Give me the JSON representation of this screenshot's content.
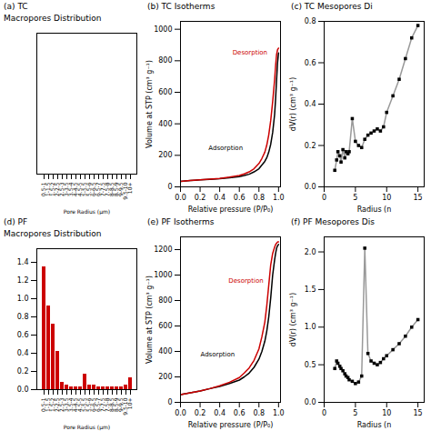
{
  "chart_data": [
    {
      "type": "bar",
      "title": "(a) TC",
      "subtitle": "Macropores Distribution",
      "xlabel": "Pore Radius (μm)",
      "categories": [
        "0.5-1",
        "1-1.5",
        "1.5-2",
        "2-2.5",
        "2.5-3",
        "3-3.5",
        "3.5-4",
        "4-4.5",
        "4.5-5",
        "5-5.5",
        "5.5-6",
        "6-6.5",
        "6.5-7",
        "7-7.5",
        "7.5-8",
        "8-8.5",
        "8.5-9",
        "9-9.5",
        "9.5-10",
        "10+"
      ],
      "values": [
        0,
        0,
        0,
        0,
        0,
        0,
        0,
        0,
        0,
        0,
        0,
        0,
        0,
        0,
        0,
        0,
        0,
        0,
        0,
        0
      ],
      "color": "#cc0000",
      "ylim": [
        0,
        1.6
      ],
      "yticks": [],
      "tick_labels": "x"
    },
    {
      "type": "line",
      "title": "(b) TC Isotherms",
      "xlabel": "Relative pressure (P/P₀)",
      "ylabel": "Volume at STP (cm³ g⁻¹)",
      "xlim": [
        0,
        1.02
      ],
      "xticks": [
        {
          "value": 0,
          "label": "0.0"
        },
        0.2,
        0.4,
        0.6,
        0.8,
        {
          "value": 1,
          "label": "1.0"
        }
      ],
      "ylim": [
        0,
        1050
      ],
      "yticks": [
        0,
        200,
        400,
        600,
        800,
        1000
      ],
      "series": [
        {
          "name": "Adsorption",
          "color": "#000000",
          "x": [
            0.0,
            0.05,
            0.1,
            0.15,
            0.2,
            0.3,
            0.4,
            0.5,
            0.6,
            0.65,
            0.7,
            0.75,
            0.8,
            0.83,
            0.86,
            0.88,
            0.9,
            0.92,
            0.94,
            0.96,
            0.97,
            0.98,
            0.99,
            1.0
          ],
          "values": [
            35,
            38,
            40,
            42,
            44,
            48,
            52,
            58,
            65,
            72,
            80,
            95,
            115,
            138,
            162,
            185,
            220,
            270,
            345,
            460,
            560,
            680,
            790,
            850
          ]
        },
        {
          "name": "Desorption",
          "color": "#cc0000",
          "x": [
            0.0,
            0.05,
            0.1,
            0.2,
            0.3,
            0.4,
            0.5,
            0.6,
            0.65,
            0.7,
            0.75,
            0.8,
            0.83,
            0.86,
            0.88,
            0.9,
            0.92,
            0.94,
            0.96,
            0.97,
            0.98,
            0.99,
            1.0
          ],
          "values": [
            35,
            38,
            40,
            44,
            49,
            54,
            62,
            72,
            82,
            95,
            115,
            148,
            180,
            220,
            265,
            330,
            420,
            540,
            680,
            770,
            840,
            870,
            880
          ]
        }
      ]
    },
    {
      "type": "line",
      "title": "(c) TC Mesopores Di",
      "xlabel": "Radius (n",
      "ylabel": "dV(r) (cm³ g⁻¹)",
      "xlim": [
        0,
        16
      ],
      "xticks": [
        0,
        5,
        10,
        15
      ],
      "ylim": [
        0,
        0.8
      ],
      "yticks": [
        {
          "value": 0,
          "label": "0.0"
        },
        0.2,
        0.4,
        0.6,
        0.8
      ],
      "x": [
        1.7,
        2.0,
        2.2,
        2.5,
        2.7,
        3.0,
        3.3,
        3.5,
        3.8,
        4.0,
        4.5,
        5.0,
        5.5,
        6.0,
        6.5,
        7.0,
        7.5,
        8.0,
        8.5,
        9.0,
        9.5,
        10.0,
        11.0,
        12.0,
        13.0,
        14.0,
        15.0
      ],
      "series": [
        {
          "type": "line",
          "color": "#999999",
          "values": [
            0.08,
            0.13,
            0.17,
            0.15,
            0.12,
            0.18,
            0.14,
            0.17,
            0.16,
            0.17,
            0.33,
            0.22,
            0.2,
            0.19,
            0.23,
            0.25,
            0.26,
            0.27,
            0.28,
            0.27,
            0.29,
            0.36,
            0.44,
            0.52,
            0.62,
            0.72,
            0.78
          ]
        },
        {
          "type": "scatter",
          "color": "#000000",
          "marker": "square",
          "values": [
            0.08,
            0.13,
            0.17,
            0.15,
            0.12,
            0.18,
            0.14,
            0.17,
            0.16,
            0.17,
            0.33,
            0.22,
            0.2,
            0.19,
            0.23,
            0.25,
            0.26,
            0.27,
            0.28,
            0.27,
            0.29,
            0.36,
            0.44,
            0.52,
            0.62,
            0.72,
            0.78
          ]
        }
      ]
    },
    {
      "type": "bar",
      "title": "(d) PF",
      "subtitle": "Macropores Distribution",
      "xlabel": "Pore Radius (μm)",
      "categories": [
        "0.5-1",
        "1-1.5",
        "1.5-2",
        "2-2.5",
        "2.5-3",
        "3-3.5",
        "3.5-4",
        "4-4.5",
        "4.5-5",
        "5-5.5",
        "5.5-6",
        "6-6.5",
        "6.5-7",
        "7-7.5",
        "7.5-8",
        "8-8.5",
        "8.5-9",
        "9-9.5",
        "9.5-10",
        "10+"
      ],
      "values": [
        1.35,
        0.92,
        0.72,
        0.42,
        0.08,
        0.05,
        0.03,
        0.03,
        0.03,
        0.17,
        0.05,
        0.05,
        0.03,
        0.03,
        0.03,
        0.03,
        0.03,
        0.03,
        0.05,
        0.13
      ],
      "color": "#cc0000",
      "ylim": [
        0,
        1.55
      ],
      "yticks": [
        {
          "value": 0,
          "label": "0.0"
        },
        0.2,
        0.4,
        0.6,
        0.8,
        {
          "value": 1,
          "label": "1.0"
        },
        1.2,
        1.4
      ]
    },
    {
      "type": "line",
      "title": "(e) PF Isotherms",
      "xlabel": "Relative pressure (P/P₀)",
      "ylabel": "Volume at STP (cm³ g⁻¹)",
      "xlim": [
        0,
        1.02
      ],
      "xticks": [
        {
          "value": 0,
          "label": "0.0"
        },
        0.2,
        0.4,
        0.6,
        0.8,
        {
          "value": 1,
          "label": "1.0"
        }
      ],
      "ylim": [
        0,
        1300
      ],
      "yticks": [
        0,
        200,
        400,
        600,
        800,
        1000,
        1200
      ],
      "series": [
        {
          "name": "Adsorption",
          "color": "#000000",
          "x": [
            0.0,
            0.05,
            0.1,
            0.15,
            0.2,
            0.3,
            0.4,
            0.5,
            0.6,
            0.65,
            0.7,
            0.75,
            0.8,
            0.83,
            0.86,
            0.88,
            0.9,
            0.92,
            0.94,
            0.96,
            0.97,
            0.98,
            0.99,
            1.0
          ],
          "values": [
            60,
            68,
            75,
            82,
            90,
            108,
            125,
            148,
            175,
            200,
            230,
            275,
            340,
            400,
            480,
            560,
            670,
            820,
            1000,
            1120,
            1170,
            1210,
            1230,
            1240
          ]
        },
        {
          "name": "Desorption",
          "color": "#cc0000",
          "x": [
            0.0,
            0.05,
            0.1,
            0.2,
            0.3,
            0.4,
            0.5,
            0.6,
            0.65,
            0.7,
            0.75,
            0.8,
            0.83,
            0.86,
            0.88,
            0.9,
            0.92,
            0.94,
            0.96,
            0.97,
            0.98,
            0.99,
            1.0
          ],
          "values": [
            60,
            68,
            75,
            90,
            108,
            130,
            158,
            195,
            230,
            270,
            330,
            420,
            515,
            630,
            760,
            920,
            1080,
            1170,
            1220,
            1240,
            1250,
            1260,
            1260
          ]
        }
      ]
    },
    {
      "type": "line",
      "title": "(f) PF Mesopores Dis",
      "xlabel": "Radius (n",
      "ylabel": "dV(r) (cm³ g⁻¹)",
      "xlim": [
        0,
        16
      ],
      "xticks": [
        0,
        5,
        10,
        15
      ],
      "ylim": [
        0,
        2.2
      ],
      "yticks": [
        {
          "value": 0,
          "label": "0.0"
        },
        0.5,
        {
          "value": 1,
          "label": "1.0"
        },
        1.5,
        {
          "value": 2,
          "label": "2.0"
        }
      ],
      "x": [
        1.7,
        2.0,
        2.2,
        2.5,
        2.7,
        3.0,
        3.3,
        3.5,
        3.8,
        4.0,
        4.5,
        5.0,
        5.5,
        6.0,
        6.5,
        7.0,
        7.5,
        8.0,
        8.5,
        9.0,
        9.5,
        10.0,
        11.0,
        12.0,
        13.0,
        14.0,
        15.0
      ],
      "series": [
        {
          "type": "line",
          "color": "#999999",
          "values": [
            0.45,
            0.55,
            0.52,
            0.48,
            0.45,
            0.42,
            0.38,
            0.35,
            0.33,
            0.3,
            0.28,
            0.25,
            0.27,
            0.35,
            2.05,
            0.65,
            0.55,
            0.52,
            0.5,
            0.53,
            0.58,
            0.62,
            0.7,
            0.78,
            0.88,
            1.0,
            1.1
          ]
        },
        {
          "type": "scatter",
          "color": "#000000",
          "marker": "square",
          "values": [
            0.45,
            0.55,
            0.52,
            0.48,
            0.45,
            0.42,
            0.38,
            0.35,
            0.33,
            0.3,
            0.28,
            0.25,
            0.27,
            0.35,
            2.05,
            0.65,
            0.55,
            0.52,
            0.5,
            0.53,
            0.58,
            0.62,
            0.7,
            0.78,
            0.88,
            1.0,
            1.1
          ]
        }
      ]
    }
  ]
}
